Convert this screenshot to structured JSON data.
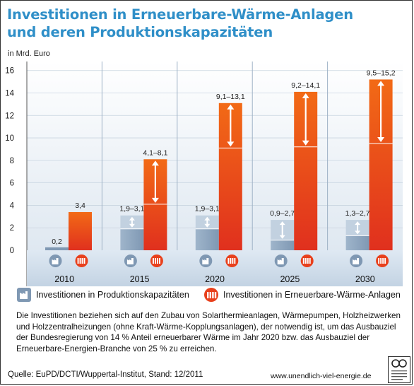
{
  "title_line1": "Investitionen in Erneuerbare-Wärme-Anlagen",
  "title_line2": "und deren Produktionskapazitäten",
  "unit": "in Mrd. Euro",
  "legend": {
    "prod": "Investitionen in Produktionskapazitäten",
    "anlagen": "Investitionen in Erneuerbare-Wärme-Anlagen"
  },
  "description": "Die Investitionen beziehen sich auf den Zubau von Solarthermieanlagen, Wärmepumpen, Holzheizwerken und Holzzentralheizungen (ohne Kraft-Wärme-Kopplungsanlagen), der notwendig ist, um das Ausbauziel der Bundesregierung von 14 % Anteil erneuerbarer Wärme  im Jahr 2020 bzw. das Ausbauziel der Erneuerbare-Energien-Branche von 25 % zu erreichen.",
  "source": "Quelle: EuPD/DCTI/Wuppertal-Institut, Stand: 12/2011",
  "url": "www.unendlich-viel-energie.de",
  "colors": {
    "blue": "#8fa8c2",
    "orange": "#e8401c",
    "title": "#2f8fc8"
  },
  "chart_data": {
    "type": "bar",
    "categories": [
      "2010",
      "2015",
      "2020",
      "2025",
      "2030"
    ],
    "yticks": [
      0,
      2,
      4,
      6,
      8,
      10,
      12,
      14,
      16
    ],
    "ylim": [
      0,
      16.8
    ],
    "series": [
      {
        "name": "Investitionen in Produktionskapazitäten",
        "low": [
          0.2,
          1.9,
          1.9,
          0.9,
          1.3
        ],
        "high": [
          0.2,
          3.1,
          3.1,
          2.7,
          2.7
        ],
        "labels": [
          "0,2",
          "1,9–3,1",
          "1,9–3,1",
          "0,9–2,7",
          "1,3–2,7"
        ]
      },
      {
        "name": "Investitionen in Erneuerbare-Wärme-Anlagen",
        "low": [
          3.4,
          4.1,
          9.1,
          9.2,
          9.5
        ],
        "high": [
          3.4,
          8.1,
          13.1,
          14.1,
          15.2
        ],
        "labels": [
          "3,4",
          "4,1–8,1",
          "9,1–13,1",
          "9,2–14,1",
          "9,5–15,2"
        ]
      }
    ]
  }
}
